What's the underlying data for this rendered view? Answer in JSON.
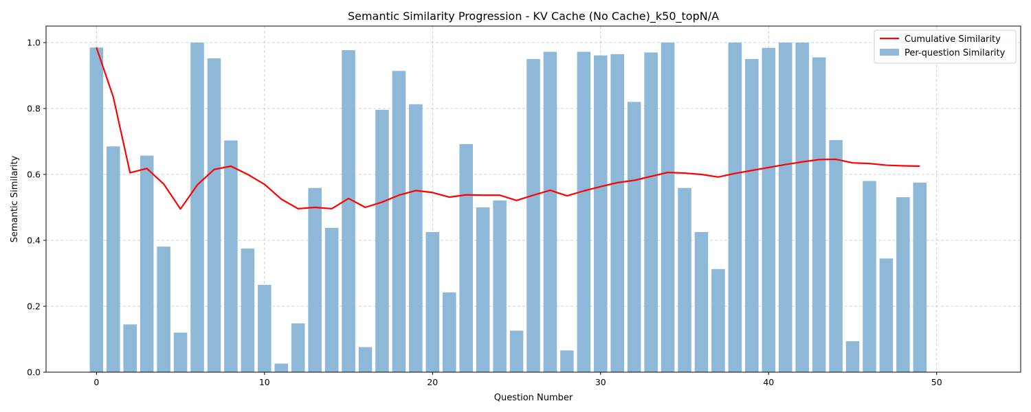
{
  "chart_data": {
    "type": "bar",
    "title": "Semantic Similarity Progression - KV Cache (No Cache)_k50_topN/A",
    "xlabel": "Question Number",
    "ylabel": "Semantic Similarity",
    "xlim": [
      -3,
      55
    ],
    "ylim": [
      0,
      1.05
    ],
    "xticks": [
      0,
      10,
      20,
      30,
      40,
      50
    ],
    "yticks": [
      0.0,
      0.2,
      0.4,
      0.6,
      0.8,
      1.0
    ],
    "grid": true,
    "legend_position": "top-right",
    "x": [
      0,
      1,
      2,
      3,
      4,
      5,
      6,
      7,
      8,
      9,
      10,
      11,
      12,
      13,
      14,
      15,
      16,
      17,
      18,
      19,
      20,
      21,
      22,
      23,
      24,
      25,
      26,
      27,
      28,
      29,
      30,
      31,
      32,
      33,
      34,
      35,
      36,
      37,
      38,
      39,
      40,
      41,
      42,
      43,
      44,
      45,
      46,
      47,
      48,
      49
    ],
    "series": [
      {
        "name": "Cumulative Similarity",
        "kind": "line",
        "color": "#ff0000",
        "values": [
          0.985,
          0.835,
          0.605,
          0.618,
          0.571,
          0.495,
          0.568,
          0.615,
          0.625,
          0.6,
          0.57,
          0.525,
          0.496,
          0.5,
          0.496,
          0.527,
          0.5,
          0.516,
          0.537,
          0.551,
          0.545,
          0.531,
          0.538,
          0.537,
          0.537,
          0.521,
          0.537,
          0.552,
          0.535,
          0.55,
          0.563,
          0.575,
          0.582,
          0.594,
          0.606,
          0.604,
          0.6,
          0.592,
          0.603,
          0.612,
          0.621,
          0.63,
          0.638,
          0.645,
          0.646,
          0.635,
          0.633,
          0.628,
          0.626,
          0.625
        ]
      },
      {
        "name": "Per-question Similarity",
        "kind": "bar",
        "color": "#8db8d8",
        "values": [
          0.985,
          0.685,
          0.145,
          0.657,
          0.381,
          0.12,
          1.0,
          0.952,
          0.703,
          0.375,
          0.265,
          0.026,
          0.148,
          0.559,
          0.438,
          0.977,
          0.076,
          0.796,
          0.914,
          0.813,
          0.425,
          0.242,
          0.692,
          0.5,
          0.521,
          0.126,
          0.95,
          0.972,
          0.066,
          0.972,
          0.961,
          0.965,
          0.82,
          0.97,
          1.0,
          0.559,
          0.425,
          0.313,
          1.0,
          0.95,
          0.984,
          1.0,
          1.0,
          0.955,
          0.704,
          0.094,
          0.58,
          0.345,
          0.531,
          0.575
        ]
      }
    ]
  }
}
